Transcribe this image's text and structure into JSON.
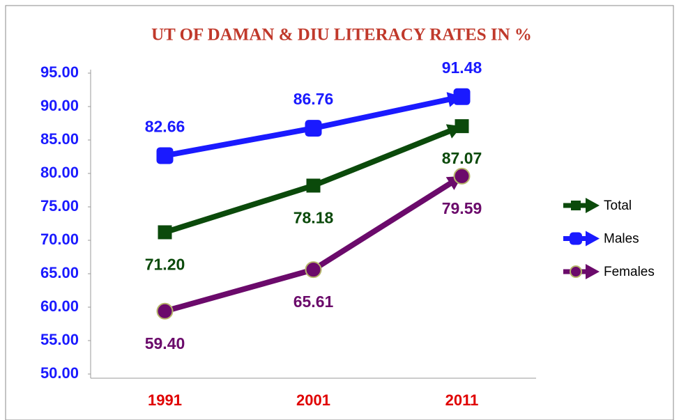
{
  "chart_data": {
    "type": "line",
    "title": "UT OF DAMAN & DIU LITERACY RATES IN %",
    "title_color": "#c0392b",
    "categories": [
      "1991",
      "2001",
      "2011"
    ],
    "category_color": "#e00000",
    "ylim": [
      50,
      95
    ],
    "yticks": [
      {
        "value": 50,
        "label": "50.00"
      },
      {
        "value": 55,
        "label": "55.00"
      },
      {
        "value": 60,
        "label": "60.00"
      },
      {
        "value": 65,
        "label": "65.00"
      },
      {
        "value": 70,
        "label": "70.00"
      },
      {
        "value": 75,
        "label": "75.00"
      },
      {
        "value": 80,
        "label": "80.00"
      },
      {
        "value": 85,
        "label": "85.00"
      },
      {
        "value": 90,
        "label": "90.00"
      },
      {
        "value": 95,
        "label": "95.00"
      }
    ],
    "ytick_color": "#1a1aff",
    "grid": false,
    "legend": "right",
    "series": [
      {
        "name": "Total",
        "color": "#0b4a0b",
        "marker": "square",
        "label_position": "below",
        "values": [
          71.2,
          78.18,
          87.07
        ],
        "value_labels": [
          "71.20",
          "78.18",
          "87.07"
        ]
      },
      {
        "name": "Males",
        "color": "#1a1aff",
        "marker": "rounded",
        "label_position": "above",
        "values": [
          82.66,
          86.76,
          91.48
        ],
        "value_labels": [
          "82.66",
          "86.76",
          "91.48"
        ]
      },
      {
        "name": "Females",
        "color": "#6b0a6b",
        "marker": "circle",
        "label_position": "below",
        "values": [
          59.4,
          65.61,
          79.59
        ],
        "value_labels": [
          "59.40",
          "65.61",
          "79.59"
        ]
      }
    ]
  }
}
